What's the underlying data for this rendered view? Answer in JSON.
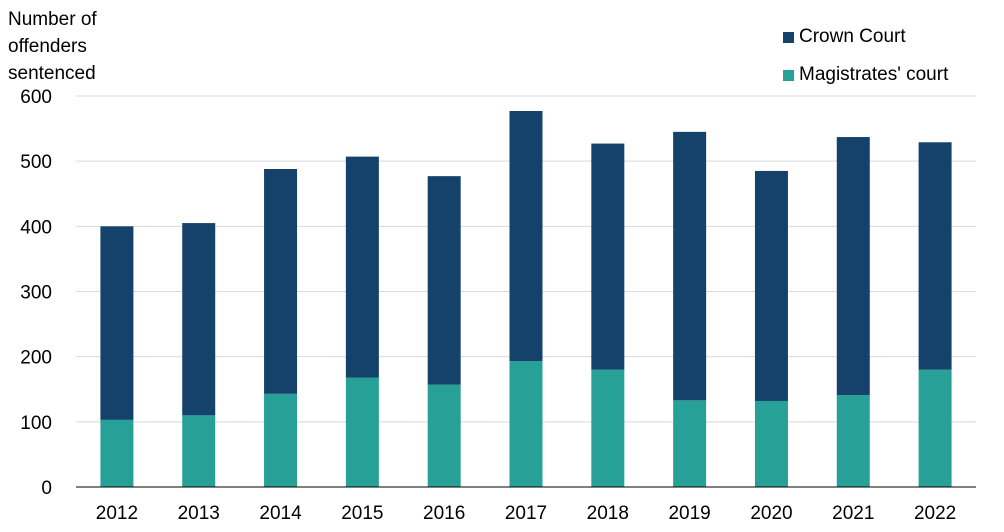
{
  "chart_data": {
    "type": "bar",
    "stacked": true,
    "ylabel_lines": [
      "Number of",
      "offenders",
      "sentenced"
    ],
    "categories": [
      "2012",
      "2013",
      "2014",
      "2015",
      "2016",
      "2017",
      "2018",
      "2019",
      "2020",
      "2021",
      "2022"
    ],
    "series": [
      {
        "name": "Magistrates' court",
        "color": "#27a198",
        "values": [
          103,
          110,
          143,
          168,
          157,
          193,
          180,
          133,
          132,
          141,
          180
        ]
      },
      {
        "name": "Crown Court",
        "color": "#15426b",
        "values": [
          297,
          295,
          345,
          339,
          320,
          384,
          347,
          412,
          353,
          396,
          349
        ]
      }
    ],
    "ylim": [
      0,
      600
    ],
    "yticks": [
      0,
      100,
      200,
      300,
      400,
      500,
      600
    ],
    "grid": true,
    "legend_position": "top-right"
  }
}
